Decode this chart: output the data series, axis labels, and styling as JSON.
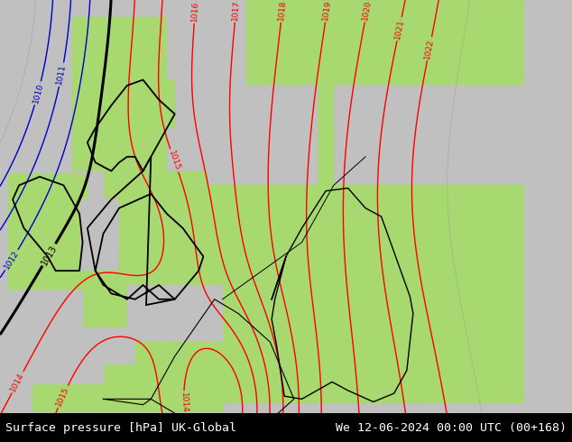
{
  "title_left": "Surface pressure [hPa] UK-Global",
  "title_right": "We 12-06-2024 00:00 UTC (00+168)",
  "title_fontsize": 9.5,
  "fig_width": 6.34,
  "fig_height": 4.9,
  "dpi": 100,
  "land_green": "#a8d870",
  "sea_gray": "#c0c0c0",
  "bottom_bar_color": "#000000",
  "contour_color_red": "#ff0000",
  "contour_color_blue": "#0000cc",
  "contour_color_black": "#000000",
  "contour_color_gray": "#909090",
  "xlim": [
    -11,
    25
  ],
  "ylim": [
    47.0,
    61.5
  ]
}
